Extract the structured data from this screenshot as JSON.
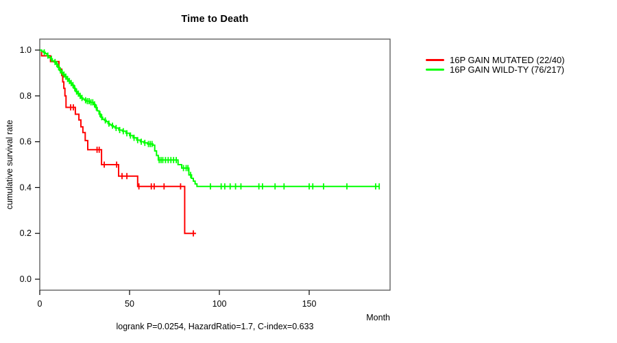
{
  "figure": {
    "title": "Time to Death",
    "ylabel": "cumulative survival rate",
    "xlabel": "Month",
    "footer": "logrank P=0.0254, HazardRatio=1.7, C-index=0.633"
  },
  "legend": {
    "items": [
      {
        "label": "16P GAIN MUTATED (22/40)",
        "color": "#ff0000"
      },
      {
        "label": "16P GAIN WILD-TY (76/217)",
        "color": "#00ff00"
      }
    ]
  },
  "chart_data": {
    "type": "line",
    "subtype": "kaplan-meier-step",
    "title": "Time to Death",
    "xlabel": "Month",
    "ylabel": "cumulative survival rate",
    "xlim": [
      0,
      195
    ],
    "ylim": [
      0.0,
      1.0
    ],
    "xticks": [
      0,
      50,
      100,
      150
    ],
    "ytick_labels": [
      "0.0",
      "0.2",
      "0.4",
      "0.6",
      "0.8",
      "1.0"
    ],
    "grid": false,
    "legend_position": "right-outside",
    "frame_color": "#555555",
    "series": [
      {
        "name": "16P GAIN MUTATED (22/40)",
        "color": "#ff0000",
        "events_total": "22/40",
        "end_time": 87,
        "steps": [
          [
            0,
            1.0
          ],
          [
            1,
            0.975
          ],
          [
            6,
            0.95
          ],
          [
            10.7,
            0.917
          ],
          [
            12.2,
            0.889
          ],
          [
            12.8,
            0.861
          ],
          [
            13.4,
            0.833
          ],
          [
            14,
            0.8
          ],
          [
            14.6,
            0.75
          ],
          [
            19.8,
            0.72
          ],
          [
            21.8,
            0.695
          ],
          [
            22.9,
            0.665
          ],
          [
            24,
            0.64
          ],
          [
            25.3,
            0.605
          ],
          [
            26.7,
            0.565
          ],
          [
            34.4,
            0.5
          ],
          [
            43.9,
            0.45
          ],
          [
            54.5,
            0.405
          ],
          [
            80.7,
            0.2
          ]
        ],
        "censor_times": [
          17.2,
          18.7,
          31.9,
          33.1,
          35.9,
          42.8,
          45.8,
          48.5,
          55.2,
          62.1,
          63.7,
          69.2,
          78.4,
          85.5
        ]
      },
      {
        "name": "16P GAIN WILD-TY (76/217)",
        "color": "#00ff00",
        "events_total": "76/217",
        "end_time": 189,
        "steps": [
          [
            0,
            1.0
          ],
          [
            1,
            0.995
          ],
          [
            2,
            0.99
          ],
          [
            3,
            0.985
          ],
          [
            4,
            0.976
          ],
          [
            5,
            0.967
          ],
          [
            6,
            0.962
          ],
          [
            7,
            0.953
          ],
          [
            8,
            0.948
          ],
          [
            9,
            0.939
          ],
          [
            10,
            0.925
          ],
          [
            11,
            0.911
          ],
          [
            12,
            0.902
          ],
          [
            13,
            0.893
          ],
          [
            14,
            0.884
          ],
          [
            15,
            0.874
          ],
          [
            16,
            0.865
          ],
          [
            17,
            0.856
          ],
          [
            18,
            0.847
          ],
          [
            19,
            0.833
          ],
          [
            20,
            0.819
          ],
          [
            21,
            0.81
          ],
          [
            22,
            0.8
          ],
          [
            23,
            0.791
          ],
          [
            24,
            0.786
          ],
          [
            25,
            0.781
          ],
          [
            26,
            0.777
          ],
          [
            28,
            0.772
          ],
          [
            30,
            0.763
          ],
          [
            31,
            0.749
          ],
          [
            32,
            0.735
          ],
          [
            33,
            0.721
          ],
          [
            34,
            0.707
          ],
          [
            35,
            0.698
          ],
          [
            36,
            0.693
          ],
          [
            37,
            0.688
          ],
          [
            38,
            0.679
          ],
          [
            39,
            0.674
          ],
          [
            40,
            0.67
          ],
          [
            41,
            0.665
          ],
          [
            42,
            0.66
          ],
          [
            44,
            0.651
          ],
          [
            46,
            0.646
          ],
          [
            48,
            0.637
          ],
          [
            50,
            0.627
          ],
          [
            52,
            0.617
          ],
          [
            54,
            0.607
          ],
          [
            56,
            0.6
          ],
          [
            58,
            0.595
          ],
          [
            60,
            0.59
          ],
          [
            63,
            0.585
          ],
          [
            64,
            0.56
          ],
          [
            65,
            0.54
          ],
          [
            66,
            0.52
          ],
          [
            77,
            0.5
          ],
          [
            79,
            0.485
          ],
          [
            83,
            0.455
          ],
          [
            84.5,
            0.44
          ],
          [
            85.5,
            0.428
          ],
          [
            86.5,
            0.416
          ],
          [
            87.5,
            0.405
          ]
        ],
        "censor_times": [
          2.5,
          4.5,
          6.5,
          8.5,
          9.5,
          10.5,
          11.5,
          12.5,
          13.5,
          14.5,
          15.5,
          16.5,
          17.5,
          18.5,
          19.5,
          20.5,
          21.5,
          22.5,
          23.5,
          25.5,
          26.5,
          27.5,
          28.5,
          29.5,
          30.5,
          31.5,
          33.5,
          34.5,
          36.5,
          38.5,
          40.5,
          42.5,
          44.5,
          46.5,
          48.5,
          50.5,
          52.5,
          54.5,
          56.5,
          58.5,
          60.5,
          61.5,
          62.5,
          66.5,
          67.5,
          68.5,
          70,
          71.5,
          73,
          74.5,
          76,
          80,
          81.5,
          82.5,
          84,
          95,
          101,
          103,
          106,
          109,
          112,
          122,
          124,
          131,
          136,
          150,
          152,
          158,
          171,
          187,
          189
        ]
      }
    ]
  }
}
